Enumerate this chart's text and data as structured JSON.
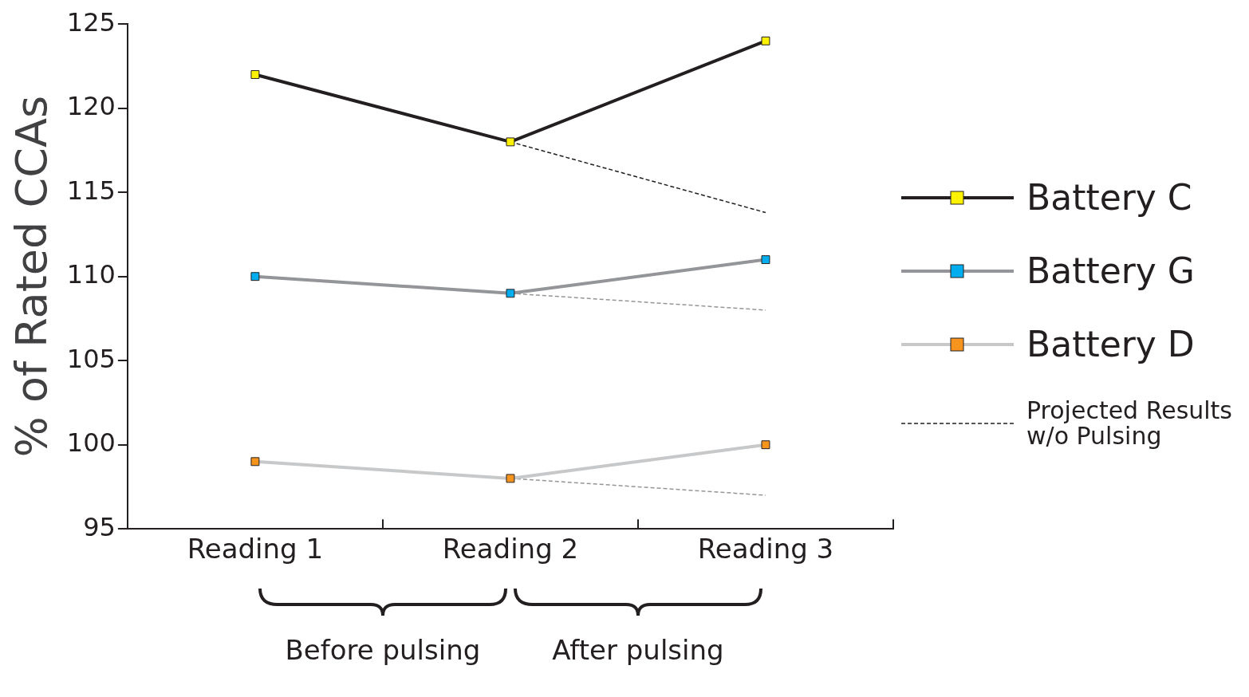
{
  "chart_data": {
    "type": "line",
    "ylabel": "% of Rated CCAs",
    "categories": [
      "Reading 1",
      "Reading 2",
      "Reading 3"
    ],
    "ylim": [
      95,
      125
    ],
    "yticks": [
      95,
      100,
      105,
      110,
      115,
      120,
      125
    ],
    "grid": false,
    "legend": "right",
    "marker": "square",
    "line_style": "solid",
    "series": [
      {
        "name": "Battery C",
        "color": "#231f20",
        "colors": [
          "#fff200",
          "#fff200",
          "#fff200"
        ],
        "values": [
          122,
          118,
          124
        ]
      },
      {
        "name": "Battery G",
        "color": "#939598",
        "colors": [
          "#00aeef",
          "#00aeef",
          "#00aeef"
        ],
        "values": [
          110,
          109,
          111
        ]
      },
      {
        "name": "Battery D",
        "color": "#c7c8ca",
        "colors": [
          "#f7941d",
          "#f7941d",
          "#f7941d"
        ],
        "values": [
          99,
          98,
          100
        ]
      },
      {
        "name": "Projected Results w/o Pulsing",
        "color": "#231f20",
        "marker": "none",
        "line_style": "dashed",
        "values": [
          null,
          118,
          113.8
        ]
      },
      {
        "color": "#939598",
        "marker": "none",
        "line_style": "dashed",
        "values": [
          null,
          109,
          108
        ]
      },
      {
        "color": "#939598",
        "marker": "none",
        "line_style": "dashed",
        "values": [
          null,
          98,
          97
        ]
      }
    ],
    "annotations": [
      "Before pulsing",
      "After pulsing"
    ]
  }
}
